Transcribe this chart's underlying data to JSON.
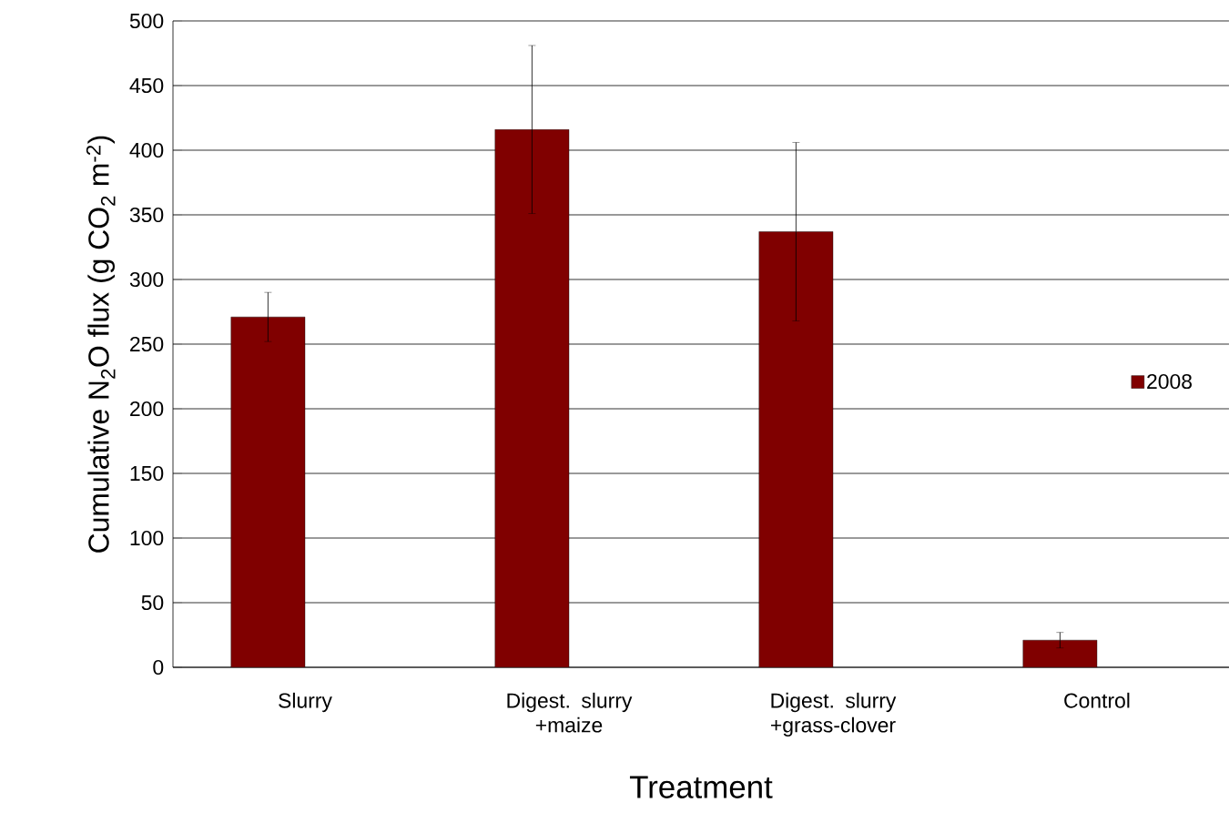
{
  "chart_data": {
    "type": "bar",
    "xlabel": "Treatment",
    "ylabel": "Cumulative N$_{2}$O flux (g CO$_{2}$ m$^{-2}$)",
    "categories": [
      "Slurry",
      "Digest. slurry +maize",
      "Digest. slurry +grass-clover",
      "Control"
    ],
    "series": [
      {
        "name": "2008",
        "color": "#800000",
        "values": [
          271,
          416,
          337,
          21
        ],
        "errors": [
          19,
          65,
          69,
          6
        ]
      }
    ],
    "ylim": [
      0,
      500
    ],
    "yticks": [
      0,
      50,
      100,
      150,
      200,
      250,
      300,
      350,
      400,
      450,
      500
    ],
    "grid": "y",
    "legend": "right"
  }
}
